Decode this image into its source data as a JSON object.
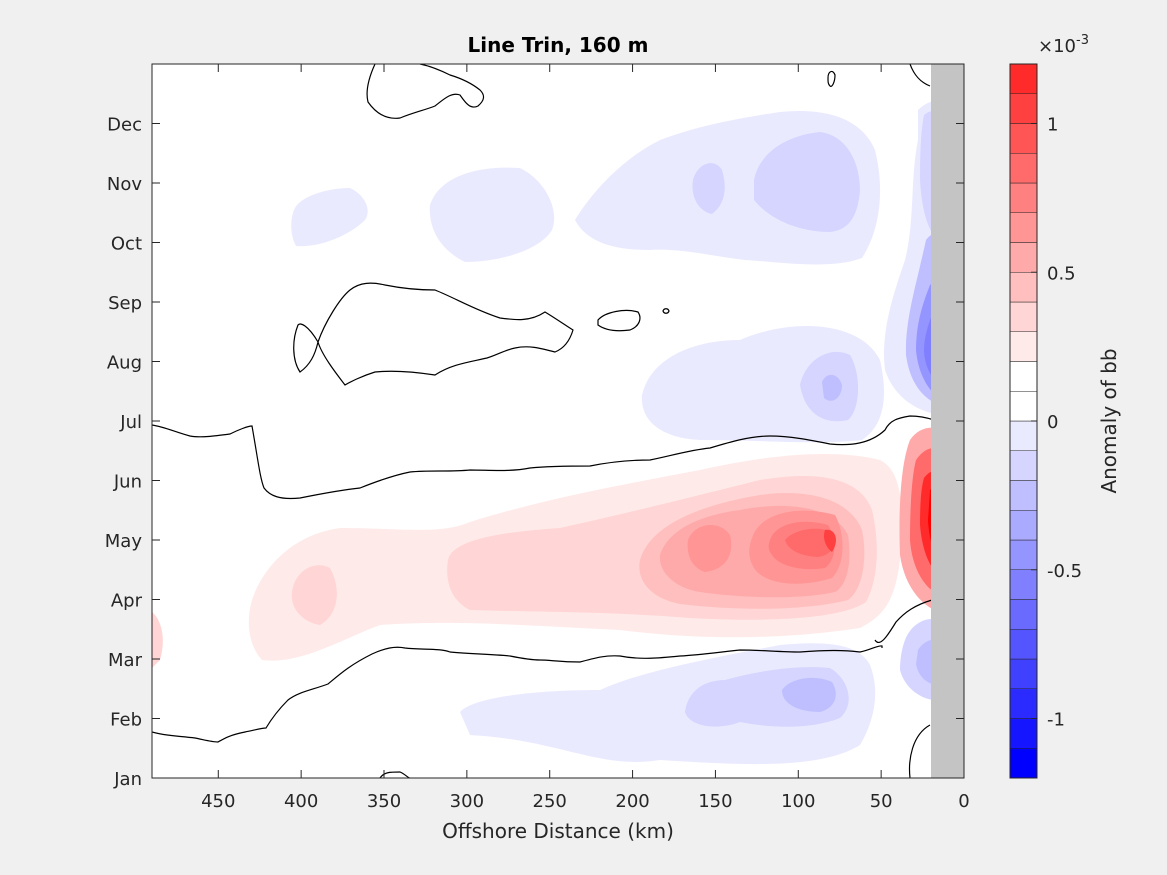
{
  "chart_data": {
    "type": "heatmap",
    "title": "Line Trin, 160 m",
    "xlabel": "Offshore Distance (km)",
    "xlim": [
      490,
      0
    ],
    "x_ticks": [
      450,
      400,
      350,
      300,
      250,
      200,
      150,
      100,
      50,
      0
    ],
    "x_tick_labels": [
      "450",
      "400",
      "350",
      "300",
      "250",
      "200",
      "150",
      "100",
      "50",
      "0"
    ],
    "y_ticks": [
      "Jan",
      "Feb",
      "Mar",
      "Apr",
      "May",
      "Jun",
      "Jul",
      "Aug",
      "Sep",
      "Oct",
      "Nov",
      "Dec"
    ],
    "colorbar": {
      "label": "Anomaly of bb",
      "exponent_label": "×10",
      "exponent": "-3",
      "range": [
        -1.2,
        1.2
      ],
      "tick_values": [
        1,
        0.5,
        0,
        -0.5,
        -1
      ],
      "tick_labels": [
        "1",
        "0.5",
        "0",
        "-0.5",
        "-1"
      ],
      "levels": [
        -1.2,
        -1.1,
        -1.0,
        -0.9,
        -0.8,
        -0.7,
        -0.6,
        -0.5,
        -0.4,
        -0.3,
        -0.2,
        -0.1,
        0,
        0.1,
        0.2,
        0.3,
        0.4,
        0.5,
        0.6,
        0.7,
        0.8,
        0.9,
        1.0,
        1.1,
        1.2
      ],
      "colors": [
        "#0000ff",
        "#1515ff",
        "#2b2bff",
        "#4040ff",
        "#5555ff",
        "#6a6aff",
        "#8080ff",
        "#9595ff",
        "#aaaaff",
        "#bfbfff",
        "#d5d5ff",
        "#eaeaff",
        "#ffffff",
        "#ffffff",
        "#ffeaea",
        "#ffd5d5",
        "#ffbfbf",
        "#ffaaaa",
        "#ff9595",
        "#ff8080",
        "#ff6a6a",
        "#ff5555",
        "#ff4040",
        "#ff2b2b",
        "#ff1515",
        "#ff0000"
      ]
    },
    "land_mask_color": "#c4c4c4",
    "land_mask_x": [
      0,
      20
    ],
    "anomaly_regions": [
      {
        "name": "Jan-Mar negative band",
        "month": 1.6,
        "km_range": [
          300,
          55
        ],
        "peak": -0.35,
        "peak_km": 90
      },
      {
        "name": "Apr-Jun positive band",
        "month": 4.55,
        "km_range": [
          490,
          20
        ],
        "peak": 0.75,
        "peak_km": 80
      },
      {
        "name": "Coastal positive peak",
        "month": 4.6,
        "km_range": [
          45,
          20
        ],
        "peak": 1.1,
        "peak_km": 20
      },
      {
        "name": "Jul-Aug negative band",
        "month": 6.8,
        "km_range": [
          195,
          55
        ],
        "peak": -0.35,
        "peak_km": 85
      },
      {
        "name": "Coastal negative Aug-Sep",
        "month": 7.8,
        "km_range": [
          40,
          20
        ],
        "peak": -0.6,
        "peak_km": 20
      },
      {
        "name": "Oct-Dec negative band",
        "month": 10.3,
        "km_range": [
          410,
          55
        ],
        "peak": -0.25,
        "peak_km": 95
      }
    ]
  }
}
